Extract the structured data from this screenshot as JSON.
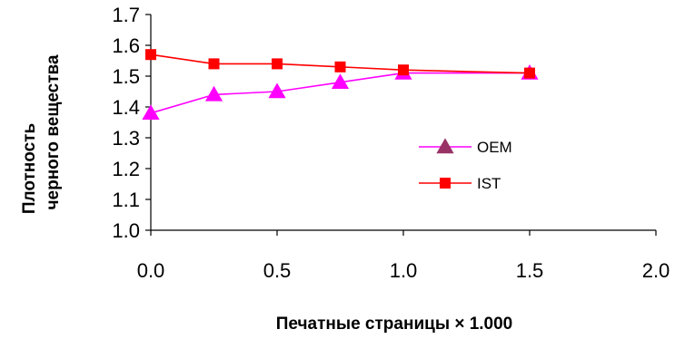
{
  "chart_data": {
    "type": "line",
    "xlabel": "Печатные страницы × 1.000",
    "ylabel_lines": [
      "Плотность",
      "черного вещества"
    ],
    "xlim": [
      0,
      2
    ],
    "ylim": [
      1.0,
      1.7
    ],
    "x_ticks": [
      "0.0",
      "0.5",
      "1.0",
      "1.5",
      "2.0"
    ],
    "y_ticks": [
      "1.7",
      "1.6",
      "1.5",
      "1.4",
      "1.3",
      "1.2",
      "1.1",
      "1.0"
    ],
    "grid": false,
    "legend_position": "center-right",
    "series": [
      {
        "name": "OEM",
        "marker": "triangle",
        "color": "#FF00FF",
        "legend_marker_color": "#993366",
        "x": [
          0,
          0.25,
          0.5,
          0.75,
          1.0,
          1.5
        ],
        "y": [
          1.38,
          1.44,
          1.45,
          1.48,
          1.51,
          1.51
        ]
      },
      {
        "name": "IST",
        "marker": "square",
        "color": "#FF0000",
        "legend_marker_color": "#FF0000",
        "x": [
          0,
          0.25,
          0.5,
          0.75,
          1.0,
          1.5
        ],
        "y": [
          1.57,
          1.54,
          1.54,
          1.53,
          1.52,
          1.51
        ]
      }
    ]
  }
}
